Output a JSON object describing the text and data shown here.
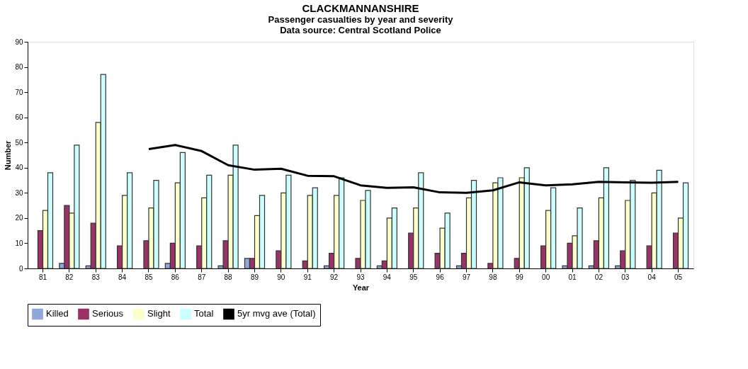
{
  "chart_data": {
    "type": "bar",
    "title": "CLACKMANNANSHIRE",
    "subtitle": "Passenger casualties by year and severity",
    "annotations": [
      "Data source: Central Scotland Police"
    ],
    "xlabel": "Year",
    "ylabel": "Number",
    "categories": [
      "81",
      "82",
      "83",
      "84",
      "85",
      "86",
      "87",
      "88",
      "89",
      "90",
      "91",
      "92",
      "93",
      "94",
      "95",
      "96",
      "97",
      "98",
      "99",
      "00",
      "01",
      "02",
      "03",
      "04",
      "05"
    ],
    "series": [
      {
        "name": "Killed",
        "color": "#8fa8d8",
        "values": [
          0,
          2,
          1,
          0,
          0,
          2,
          0,
          1,
          4,
          0,
          0,
          1,
          0,
          1,
          0,
          0,
          1,
          0,
          0,
          0,
          1,
          1,
          1,
          0,
          0
        ]
      },
      {
        "name": "Serious",
        "color": "#993366",
        "values": [
          15,
          25,
          18,
          9,
          11,
          10,
          9,
          11,
          4,
          7,
          3,
          6,
          4,
          3,
          14,
          6,
          6,
          2,
          4,
          9,
          10,
          11,
          7,
          9,
          14
        ]
      },
      {
        "name": "Slight",
        "color": "#ffffcc",
        "values": [
          23,
          22,
          58,
          29,
          24,
          34,
          28,
          37,
          21,
          30,
          29,
          29,
          27,
          20,
          24,
          16,
          28,
          34,
          36,
          23,
          13,
          28,
          27,
          30,
          20
        ]
      },
      {
        "name": "Total",
        "color": "#ccffff",
        "values": [
          38,
          49,
          77,
          38,
          35,
          46,
          37,
          49,
          29,
          37,
          32,
          36,
          31,
          24,
          38,
          22,
          35,
          36,
          40,
          32,
          24,
          40,
          35,
          39,
          34
        ]
      },
      {
        "name": "5yr mvg ave (Total)",
        "color": "#000000",
        "type": "line",
        "values": [
          null,
          null,
          null,
          null,
          47.4,
          49,
          46.6,
          41,
          39.2,
          39.6,
          36.8,
          36.6,
          33,
          32,
          32.2,
          30.2,
          30,
          31,
          34.2,
          33,
          33.4,
          34.4,
          34.2,
          34,
          34.4
        ]
      }
    ],
    "ylim": [
      0,
      90
    ],
    "yticks": [
      0,
      10,
      20,
      30,
      40,
      50,
      60,
      70,
      80,
      90
    ],
    "grid": false,
    "legend": "bottom",
    "marker": "none",
    "line_style": "solid"
  }
}
